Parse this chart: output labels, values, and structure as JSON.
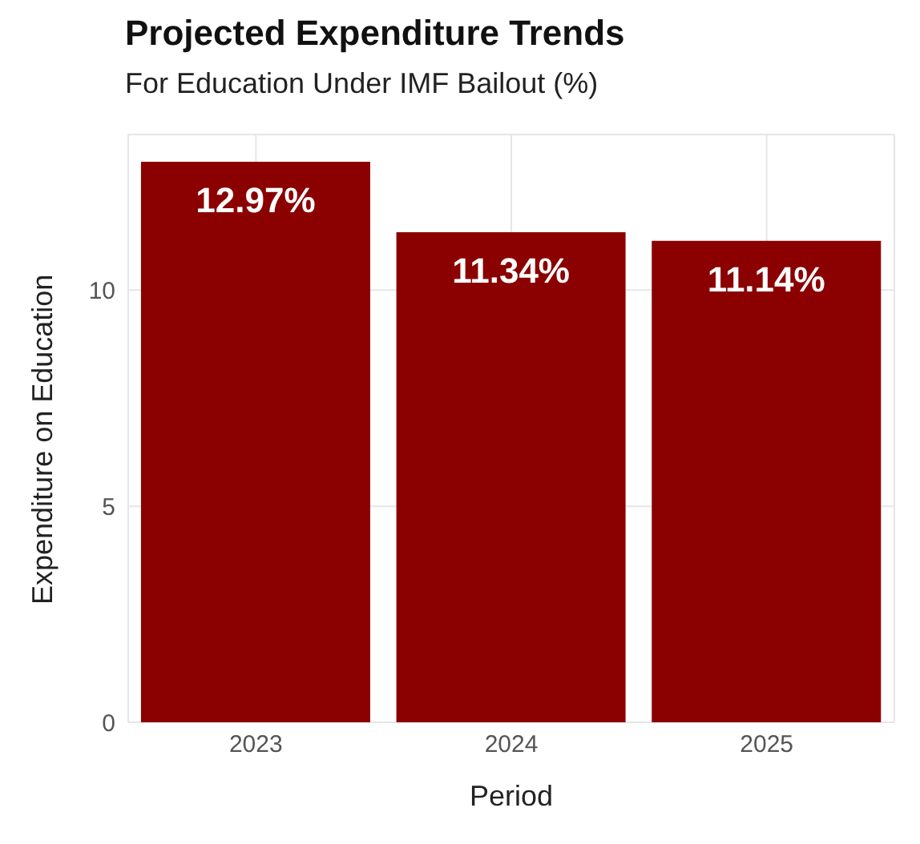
{
  "chart_data": {
    "type": "bar",
    "title": "Projected Expenditure Trends",
    "subtitle": "For Education Under IMF Bailout (%)",
    "xlabel": "Period",
    "ylabel": "Expenditure on Education",
    "categories": [
      "2023",
      "2024",
      "2025"
    ],
    "values": [
      12.97,
      11.34,
      11.14
    ],
    "value_labels": [
      "12.97%",
      "11.34%",
      "11.14%"
    ],
    "color": "#8b0000",
    "ylim": [
      0,
      13.6
    ],
    "yticks": [
      0,
      5,
      10
    ],
    "grid": true
  }
}
